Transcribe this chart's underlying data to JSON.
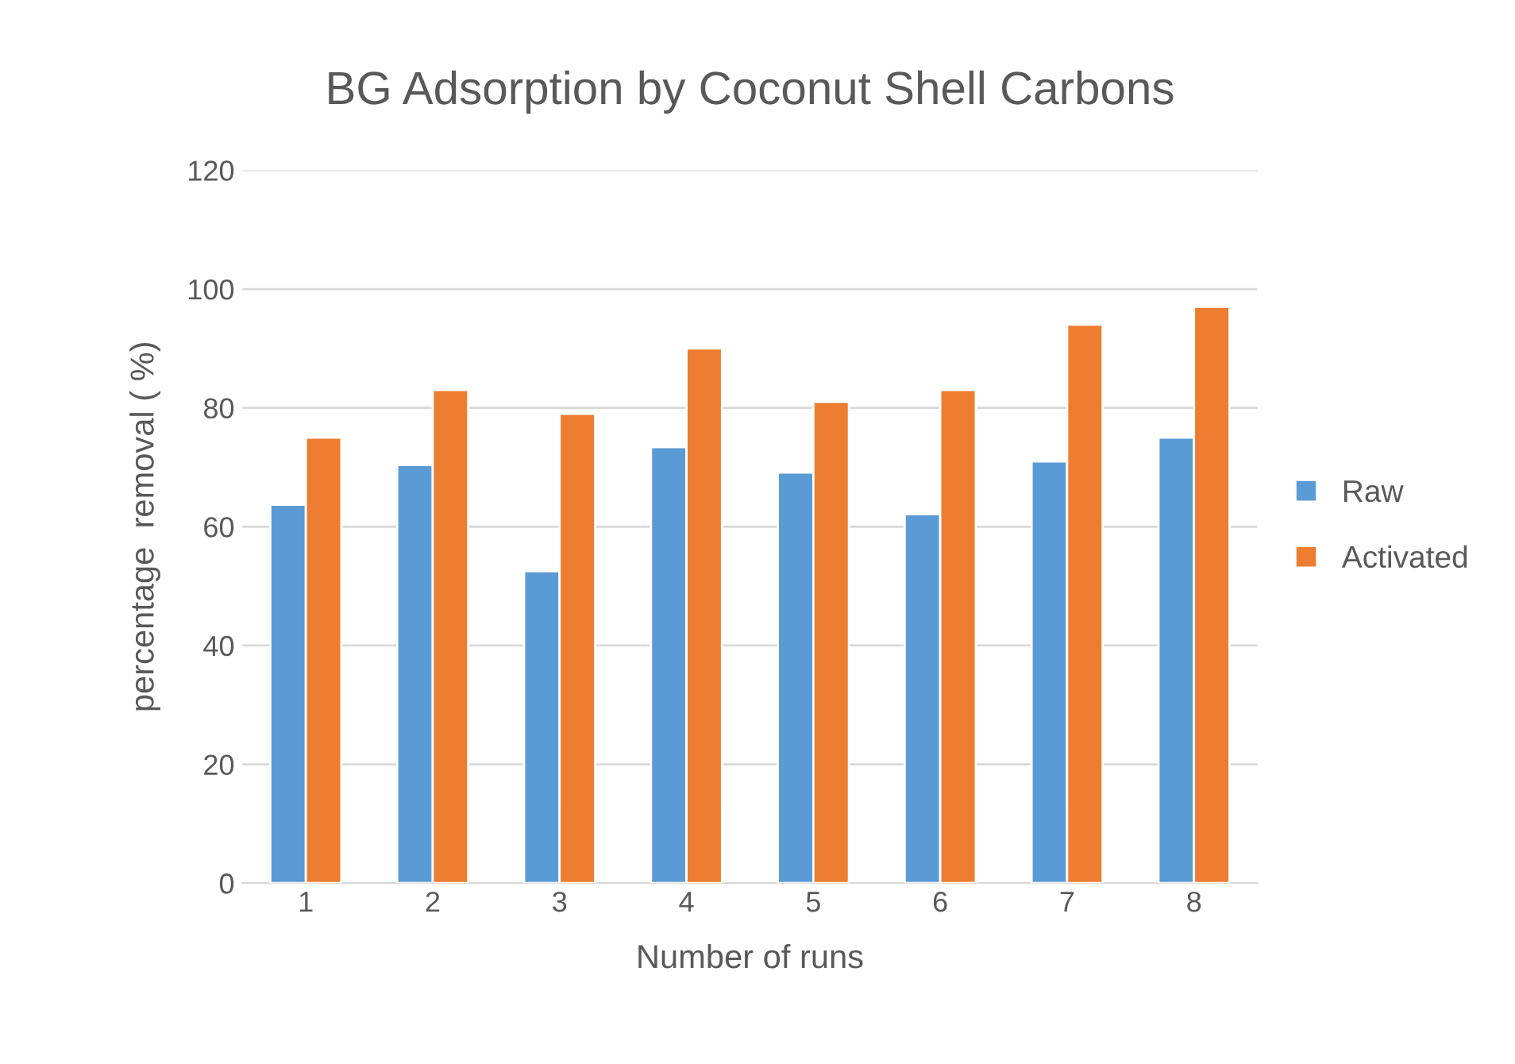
{
  "chart_data": {
    "type": "bar",
    "title": "BG Adsorption by Coconut Shell Carbons",
    "xlabel": "Number of runs",
    "ylabel": "percentage  removal ( %)",
    "categories": [
      "1",
      "2",
      "3",
      "4",
      "5",
      "6",
      "7",
      "8"
    ],
    "series": [
      {
        "name": "Raw",
        "color": "#5b9bd5",
        "values": [
          63.7,
          70.4,
          52.5,
          73.4,
          69.1,
          62.1,
          71,
          75
        ]
      },
      {
        "name": "Activated",
        "color": "#ed7d31",
        "values": [
          75,
          83,
          79,
          90,
          81,
          83,
          94,
          97
        ]
      }
    ],
    "ylim": [
      0,
      120
    ],
    "yticks": [
      0,
      20,
      40,
      60,
      80,
      100,
      120
    ],
    "grid": "y",
    "legend": "right"
  }
}
